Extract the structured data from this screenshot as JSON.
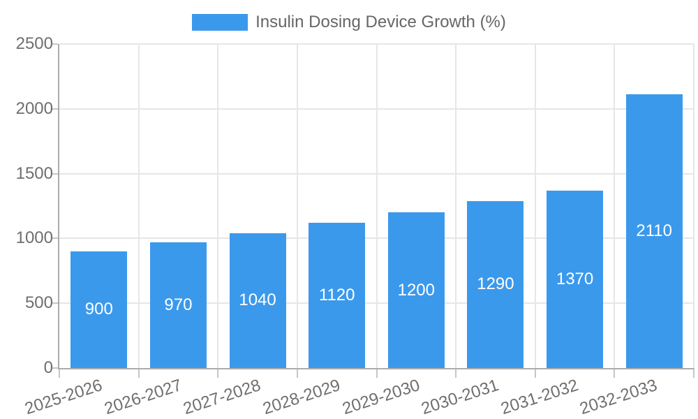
{
  "legend": {
    "label": "Insulin Dosing Device Growth (%)",
    "position": "top"
  },
  "chart_data": {
    "type": "bar",
    "title": "Insulin Dosing Device Growth (%)",
    "categories": [
      "2025-2026",
      "2026-2027",
      "2027-2028",
      "2028-2029",
      "2029-2030",
      "2030-2031",
      "2031-2032",
      "2032-2033"
    ],
    "values": [
      900,
      970,
      1040,
      1120,
      1200,
      1290,
      1370,
      2110
    ],
    "bar_value_labels": [
      "900",
      "970",
      "1040",
      "1120",
      "1200",
      "1290",
      "1370",
      "2110"
    ],
    "xlabel": "",
    "ylabel": "",
    "ylim": [
      0,
      2500
    ],
    "yticks": [
      0,
      500,
      1000,
      1500,
      2000,
      2500
    ],
    "ytick_labels": [
      "0",
      "500",
      "1000",
      "1500",
      "2000",
      "2500"
    ],
    "grid": true,
    "legend_position": "top",
    "colors": {
      "bar": "#3B99EC",
      "bar_label_text": "#FFFFFF",
      "gridline": "#E6E6E6",
      "axis_line": "#ACACAC",
      "tick_mark": "#C6C6C6",
      "tick_text": "#6E6E6E",
      "legend_text": "#666666",
      "background": "#FFFFFF"
    }
  }
}
